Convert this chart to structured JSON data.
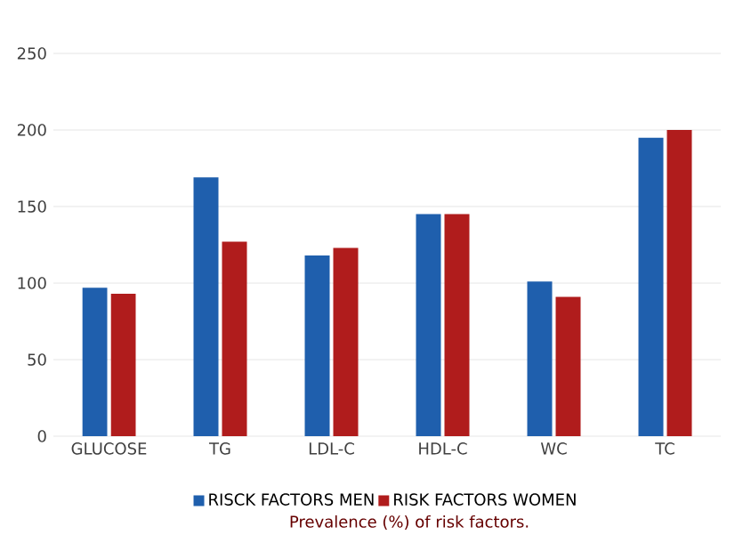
{
  "chart_data": {
    "type": "bar",
    "categories": [
      "GLUCOSE",
      "TG",
      "LDL-C",
      "HDL-C",
      "WC",
      "TC"
    ],
    "series": [
      {
        "name": "RISCK FACTORS MEN",
        "color": "#1f5fad",
        "values": [
          97,
          169,
          118,
          145,
          101,
          195
        ]
      },
      {
        "name": "RISK FACTORS WOMEN",
        "color": "#b01c1c",
        "values": [
          93,
          127,
          123,
          145,
          91,
          200
        ]
      }
    ],
    "ylim": [
      0,
      250
    ],
    "yticks": [
      0,
      50,
      100,
      150,
      200,
      250
    ],
    "grid": "y",
    "legend": "bottom",
    "annotations": [
      "Prevalence (%) of risk factors."
    ]
  }
}
